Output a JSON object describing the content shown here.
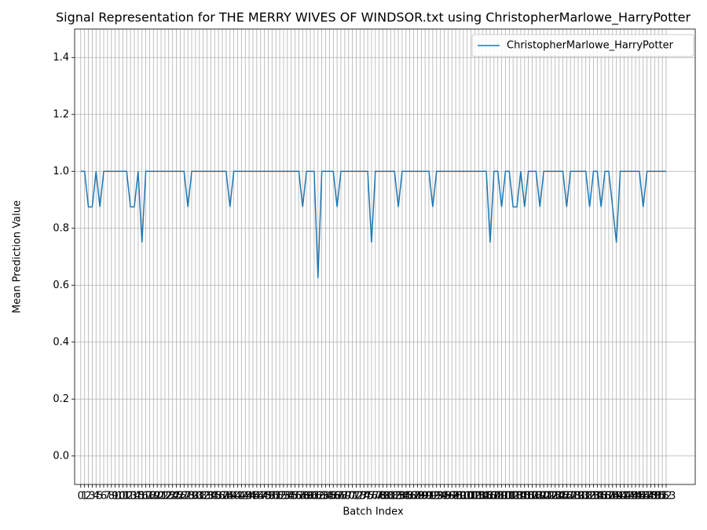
{
  "chart_data": {
    "type": "line",
    "title": "Signal Representation for THE MERRY WIVES OF WINDSOR.txt using ChristopherMarlowe_HarryPotter",
    "xlabel": "Batch Index",
    "ylabel": "Mean Prediction Value",
    "x": [
      0,
      1,
      2,
      3,
      4,
      5,
      6,
      7,
      8,
      9,
      10,
      11,
      12,
      13,
      14,
      15,
      16,
      17,
      18,
      19,
      20,
      21,
      22,
      23,
      24,
      25,
      26,
      27,
      28,
      29,
      30,
      31,
      32,
      33,
      34,
      35,
      36,
      37,
      38,
      39,
      40,
      41,
      42,
      43,
      44,
      45,
      46,
      47,
      48,
      49,
      50,
      51,
      52,
      53,
      54,
      55,
      56,
      57,
      58,
      59,
      60,
      61,
      62,
      63,
      64,
      65,
      66,
      67,
      68,
      69,
      70,
      71,
      72,
      73,
      74,
      75,
      76,
      77,
      78,
      79,
      80,
      81,
      82,
      83,
      84,
      85,
      86,
      87,
      88,
      89,
      90,
      91,
      92,
      93,
      94,
      95,
      96,
      97,
      98,
      99,
      100,
      101,
      102,
      103,
      104,
      105,
      106,
      107,
      108,
      109,
      110,
      111,
      112,
      113,
      114,
      115,
      116,
      117,
      118,
      119,
      120,
      121,
      122,
      123,
      124,
      125,
      126,
      127,
      128,
      129,
      130,
      131,
      132,
      133,
      134,
      135,
      136,
      137,
      138,
      139,
      140,
      141,
      142,
      143,
      144,
      145,
      146,
      147,
      148,
      149,
      150,
      151,
      152,
      153
    ],
    "series": [
      {
        "name": "ChristopherMarlowe_HarryPotter",
        "color": "#1f77b4",
        "values": [
          1,
          1,
          0.875,
          0.875,
          1,
          0.875,
          1,
          1,
          1,
          1,
          1,
          1,
          1,
          0.875,
          0.875,
          1,
          0.75,
          1,
          1,
          1,
          1,
          1,
          1,
          1,
          1,
          1,
          1,
          1,
          0.875,
          1,
          1,
          1,
          1,
          1,
          1,
          1,
          1,
          1,
          1,
          0.875,
          1,
          1,
          1,
          1,
          1,
          1,
          1,
          1,
          1,
          1,
          1,
          1,
          1,
          1,
          1,
          1,
          1,
          1,
          0.875,
          1,
          1,
          1,
          0.625,
          1,
          1,
          1,
          1,
          0.875,
          1,
          1,
          1,
          1,
          1,
          1,
          1,
          1,
          0.75,
          1,
          1,
          1,
          1,
          1,
          1,
          0.875,
          1,
          1,
          1,
          1,
          1,
          1,
          1,
          1,
          0.875,
          1,
          1,
          1,
          1,
          1,
          1,
          1,
          1,
          1,
          1,
          1,
          1,
          1,
          1,
          0.75,
          1,
          1,
          0.875,
          1,
          1,
          0.875,
          0.875,
          1,
          0.875,
          1,
          1,
          1,
          0.875,
          1,
          1,
          1,
          1,
          1,
          1,
          0.875,
          1,
          1,
          1,
          1,
          1,
          0.875,
          1,
          1,
          0.875,
          1,
          1,
          0.875,
          0.75,
          1,
          1,
          1,
          1,
          1,
          1,
          0.875,
          1,
          1,
          1,
          1,
          1,
          1
        ]
      }
    ],
    "xlim": [
      -1.6,
      160.6
    ],
    "xticks": [
      0,
      1,
      2,
      3,
      4,
      5,
      6,
      7,
      8,
      9,
      10,
      11,
      12,
      13,
      14,
      15,
      16,
      17,
      18,
      19,
      20,
      21,
      22,
      23,
      24,
      25,
      26,
      27,
      28,
      29,
      30,
      31,
      32,
      33,
      34,
      35,
      36,
      37,
      38,
      39,
      40,
      41,
      42,
      43,
      44,
      45,
      46,
      47,
      48,
      49,
      50,
      51,
      52,
      53,
      54,
      55,
      56,
      57,
      58,
      59,
      60,
      61,
      62,
      63,
      64,
      65,
      66,
      67,
      68,
      69,
      70,
      71,
      72,
      73,
      74,
      75,
      76,
      77,
      78,
      79,
      80,
      81,
      82,
      83,
      84,
      85,
      86,
      87,
      88,
      89,
      90,
      91,
      92,
      93,
      94,
      95,
      96,
      97,
      98,
      99,
      100,
      101,
      102,
      103,
      104,
      105,
      106,
      107,
      108,
      109,
      110,
      111,
      112,
      113,
      114,
      115,
      116,
      117,
      118,
      119,
      120,
      121,
      122,
      123,
      124,
      125,
      126,
      127,
      128,
      129,
      130,
      131,
      132,
      133,
      134,
      135,
      136,
      137,
      138,
      139,
      140,
      141,
      142,
      143,
      144,
      145,
      146,
      147,
      148,
      149,
      150,
      151,
      152,
      153
    ],
    "ylim": [
      -0.1,
      1.5
    ],
    "yticks": [
      {
        "value": 0,
        "label": "0.0"
      },
      0.2,
      0.4,
      0.6,
      0.8,
      {
        "value": 1,
        "label": "1.0"
      },
      1.2,
      1.4
    ],
    "grid": true,
    "legend": "upper right"
  }
}
